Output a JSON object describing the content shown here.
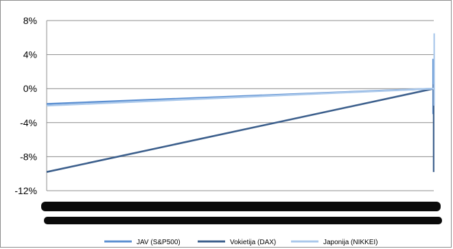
{
  "chart_data": {
    "type": "line",
    "title": "",
    "xlabel": "",
    "ylabel": "",
    "y_unit": "%",
    "ylim": [
      -12,
      8
    ],
    "y_ticks": [
      8,
      4,
      0,
      -4,
      -8,
      -12
    ],
    "y_tick_labels": [
      "8%",
      "4%",
      "0%",
      "-4%",
      "-8%",
      "-12%"
    ],
    "grid": "horizontal",
    "legend_position": "bottom",
    "x_tick_labels_legible": false,
    "series": [
      {
        "name": "JAV (S&P500)",
        "color": "#5b8fd1",
        "values": [
          -1.8,
          0.0
        ],
        "end_spike": [
          3.5,
          -3.0
        ]
      },
      {
        "name": "Vokietija (DAX)",
        "color": "#3c5f8c",
        "values": [
          -9.8,
          0.0
        ],
        "end_spike": [
          0.5,
          -9.8
        ]
      },
      {
        "name": "Japonija (NIKKEI)",
        "color": "#aac8eb",
        "values": [
          -2.0,
          0.0
        ],
        "end_spike": [
          6.5,
          -2.0
        ]
      }
    ]
  }
}
